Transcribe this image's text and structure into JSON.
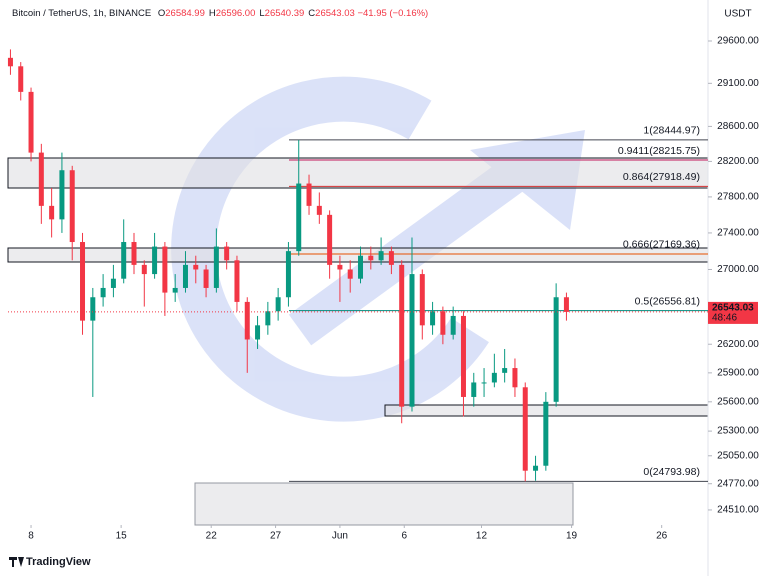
{
  "header": {
    "symbol": "Bitcoin / TetherUS, 1h, BINANCE",
    "ohlc": [
      {
        "key": "O",
        "value": "26584.99"
      },
      {
        "key": "H",
        "value": "26596.00"
      },
      {
        "key": "L",
        "value": "26540.39"
      },
      {
        "key": "C",
        "value": "26543.03"
      }
    ],
    "change": "−41.95 (−0.16%)"
  },
  "chart_data": {
    "type": "candlestick",
    "currency": "USDT",
    "countdown": "48:46",
    "brand": "TradingView",
    "log_scale": true,
    "grid": false,
    "up_color": "#089981",
    "down_color": "#f23645",
    "xlim": [
      6.21,
      60.6
    ],
    "xticks": [
      8,
      15,
      22,
      27,
      {
        "value": 32,
        "label": "Jun"
      },
      {
        "value": 37,
        "label": "6"
      },
      {
        "value": 43,
        "label": "12"
      },
      {
        "value": 50,
        "label": "19"
      },
      {
        "value": 57,
        "label": "26"
      }
    ],
    "ylim": [
      24362,
      29851
    ],
    "yticks": [
      {
        "value": 29600,
        "label": "29600.00"
      },
      {
        "value": 29100,
        "label": "29100.00"
      },
      {
        "value": 28600,
        "label": "28600.00"
      },
      {
        "value": 28200,
        "label": "28200.00"
      },
      {
        "value": 27800,
        "label": "27800.00"
      },
      {
        "value": 27400,
        "label": "27400.00"
      },
      {
        "value": 27000,
        "label": "27000.00"
      },
      {
        "value": 26200,
        "label": "26200.00"
      },
      {
        "value": 25900,
        "label": "25900.00"
      },
      {
        "value": 25600,
        "label": "25600.00"
      },
      {
        "value": 25300,
        "label": "25300.00"
      },
      {
        "value": 25050,
        "label": "25050.00"
      },
      {
        "value": 24770,
        "label": "24770.00"
      },
      {
        "value": 24510,
        "label": "24510.00"
      }
    ],
    "x": [
      6.4,
      7.2,
      8.0,
      8.8,
      9.6,
      10.4,
      11.2,
      12.0,
      12.8,
      13.6,
      14.4,
      15.2,
      16.0,
      16.8,
      17.6,
      18.4,
      19.2,
      20.0,
      20.8,
      21.6,
      22.4,
      23.2,
      24.0,
      24.8,
      25.6,
      26.4,
      27.2,
      28.0,
      28.8,
      29.6,
      30.4,
      31.2,
      32.0,
      32.8,
      33.6,
      34.4,
      35.2,
      36.0,
      36.8,
      37.6,
      38.4,
      39.2,
      40.0,
      40.8,
      41.6,
      42.4,
      43.2,
      44.0,
      44.8,
      45.6,
      46.4,
      47.2,
      48.0,
      48.8,
      49.6
    ],
    "open": [
      29400,
      29300,
      29000,
      28300,
      27700,
      27550,
      28100,
      27300,
      26450,
      26700,
      26800,
      26900,
      27300,
      27050,
      26950,
      27250,
      26750,
      26800,
      27050,
      27000,
      26800,
      27250,
      27100,
      26650,
      26250,
      26400,
      26550,
      26700,
      27200,
      27950,
      27700,
      27600,
      27050,
      27000,
      26900,
      27150,
      27100,
      27200,
      27050,
      25550,
      26950,
      26400,
      26550,
      26300,
      26500,
      25650,
      25800,
      25800,
      25900,
      25950,
      25750,
      24900,
      24950,
      25600,
      26700
    ],
    "high": [
      29500,
      29350,
      29050,
      28400,
      27900,
      28300,
      28150,
      27400,
      26800,
      26950,
      27050,
      27550,
      27400,
      27100,
      27400,
      27300,
      26950,
      27200,
      27150,
      27050,
      27450,
      27300,
      27150,
      26700,
      26500,
      26650,
      26800,
      27300,
      28445,
      28050,
      27850,
      27650,
      27150,
      27100,
      27250,
      27250,
      27350,
      27250,
      27100,
      27350,
      27000,
      26650,
      26600,
      26600,
      26550,
      25900,
      25950,
      26100,
      26150,
      26050,
      25800,
      25050,
      25700,
      26850,
      26750
    ],
    "low": [
      29200,
      28900,
      28200,
      27500,
      27350,
      27400,
      27100,
      26300,
      25650,
      26600,
      26700,
      26850,
      26950,
      26600,
      26900,
      26500,
      26650,
      26750,
      26850,
      26700,
      26750,
      27000,
      26550,
      25900,
      26150,
      26300,
      26450,
      26600,
      27150,
      27600,
      27500,
      26900,
      26650,
      26750,
      26850,
      27000,
      27050,
      26950,
      25380,
      25500,
      26250,
      26300,
      26200,
      26250,
      25450,
      25550,
      25650,
      25750,
      25800,
      25650,
      24794,
      24800,
      24900,
      25550,
      26450
    ],
    "close": [
      29300,
      29000,
      28300,
      27700,
      27550,
      28100,
      27300,
      26450,
      26700,
      26800,
      26900,
      27300,
      27050,
      26950,
      27250,
      26750,
      26800,
      27050,
      27000,
      26800,
      27250,
      27100,
      26650,
      26250,
      26400,
      26550,
      26700,
      27200,
      27950,
      27700,
      27600,
      27050,
      27000,
      26900,
      27150,
      27100,
      27200,
      27050,
      25550,
      26950,
      26400,
      26550,
      26300,
      26500,
      25650,
      25800,
      25800,
      25900,
      25950,
      25750,
      24900,
      24950,
      25600,
      26700,
      26543.03
    ],
    "fib_levels": [
      {
        "label": "1(28444.97)",
        "price": 28444.97,
        "color": "#434651"
      },
      {
        "label": "0.9411(28215.75)",
        "price": 28215.75,
        "color": "#c2185b"
      },
      {
        "label": "0.864(27918.49)",
        "price": 27918.49,
        "color": "#d32f2f"
      },
      {
        "label": "0.666(27169.36)",
        "price": 27169.36,
        "color": "#e65100"
      },
      {
        "label": "0.5(26556.81)",
        "price": 26556.81,
        "color": "#00897b"
      },
      {
        "label": "0(24793.98)",
        "price": 24793.98,
        "color": "#434651"
      }
    ]
  }
}
